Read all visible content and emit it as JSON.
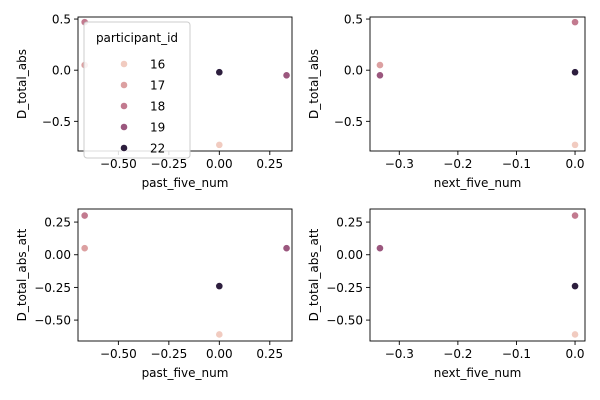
{
  "legend": {
    "title": "participant_id",
    "placement": "upper-left of top-left axes",
    "entries": [
      {
        "label": "16",
        "color": "#f1cbc0"
      },
      {
        "label": "17",
        "color": "#dca0a1"
      },
      {
        "label": "18",
        "color": "#c27a8f"
      },
      {
        "label": "19",
        "color": "#9b577e"
      },
      {
        "label": "22",
        "color": "#2d1e3e"
      }
    ]
  },
  "chart_data": [
    {
      "type": "scatter",
      "xlabel": "past_five_num",
      "ylabel": "D_total_abs",
      "xlim": [
        -0.7,
        0.36
      ],
      "ylim": [
        -0.79,
        0.52
      ],
      "xticks": [
        -0.5,
        -0.25,
        0.0,
        0.25
      ],
      "xtick_labels": [
        "−0.50",
        "−0.25",
        "0.00",
        "0.25"
      ],
      "yticks": [
        -0.5,
        0.0,
        0.5
      ],
      "ytick_labels": [
        "−0.5",
        "0.0",
        "0.5"
      ],
      "grid": false,
      "points": [
        {
          "participant_id": "16",
          "x": -0.667,
          "y": 0.05
        },
        {
          "participant_id": "17",
          "x": -0.667,
          "y": 0.05
        },
        {
          "participant_id": "16",
          "x": 0.0,
          "y": -0.73
        },
        {
          "participant_id": "18",
          "x": -0.667,
          "y": 0.47
        },
        {
          "participant_id": "22",
          "x": 0.0,
          "y": -0.02
        },
        {
          "participant_id": "19",
          "x": 0.333,
          "y": -0.05
        }
      ]
    },
    {
      "type": "scatter",
      "xlabel": "next_five_num",
      "ylabel": "D_total_abs",
      "xlim": [
        -0.35,
        0.017
      ],
      "ylim": [
        -0.79,
        0.52
      ],
      "xticks": [
        -0.3,
        -0.2,
        -0.1,
        0.0
      ],
      "xtick_labels": [
        "−0.3",
        "−0.2",
        "−0.1",
        "0.0"
      ],
      "yticks": [
        -0.5,
        0.0,
        0.5
      ],
      "ytick_labels": [
        "−0.5",
        "0.0",
        "0.5"
      ],
      "grid": false,
      "points": [
        {
          "participant_id": "17",
          "x": -0.333,
          "y": 0.05
        },
        {
          "participant_id": "19",
          "x": -0.333,
          "y": -0.05
        },
        {
          "participant_id": "18",
          "x": 0.0,
          "y": 0.47
        },
        {
          "participant_id": "22",
          "x": 0.0,
          "y": -0.02
        },
        {
          "participant_id": "16",
          "x": 0.0,
          "y": -0.73
        }
      ]
    },
    {
      "type": "scatter",
      "xlabel": "past_five_num",
      "ylabel": "D_total_abs_att",
      "xlim": [
        -0.7,
        0.36
      ],
      "ylim": [
        -0.66,
        0.35
      ],
      "xticks": [
        -0.5,
        -0.25,
        0.0,
        0.25
      ],
      "xtick_labels": [
        "−0.50",
        "−0.25",
        "0.00",
        "0.25"
      ],
      "yticks": [
        -0.5,
        -0.25,
        0.0,
        0.25
      ],
      "ytick_labels": [
        "−0.50",
        "−0.25",
        "0.00",
        "0.25"
      ],
      "grid": false,
      "points": [
        {
          "participant_id": "18",
          "x": -0.667,
          "y": 0.3
        },
        {
          "participant_id": "17",
          "x": -0.667,
          "y": 0.05
        },
        {
          "participant_id": "19",
          "x": 0.333,
          "y": 0.05
        },
        {
          "participant_id": "22",
          "x": 0.0,
          "y": -0.24
        },
        {
          "participant_id": "16",
          "x": 0.0,
          "y": -0.61
        }
      ]
    },
    {
      "type": "scatter",
      "xlabel": "next_five_num",
      "ylabel": "D_total_abs_att",
      "xlim": [
        -0.35,
        0.017
      ],
      "ylim": [
        -0.66,
        0.35
      ],
      "xticks": [
        -0.3,
        -0.2,
        -0.1,
        0.0
      ],
      "xtick_labels": [
        "−0.3",
        "−0.2",
        "−0.1",
        "0.0"
      ],
      "yticks": [
        -0.5,
        -0.25,
        0.0,
        0.25
      ],
      "ytick_labels": [
        "−0.50",
        "−0.25",
        "0.00",
        "0.25"
      ],
      "grid": false,
      "points": [
        {
          "participant_id": "19",
          "x": -0.333,
          "y": 0.05
        },
        {
          "participant_id": "18",
          "x": 0.0,
          "y": 0.3
        },
        {
          "participant_id": "22",
          "x": 0.0,
          "y": -0.24
        },
        {
          "participant_id": "16",
          "x": 0.0,
          "y": -0.61
        }
      ]
    }
  ]
}
